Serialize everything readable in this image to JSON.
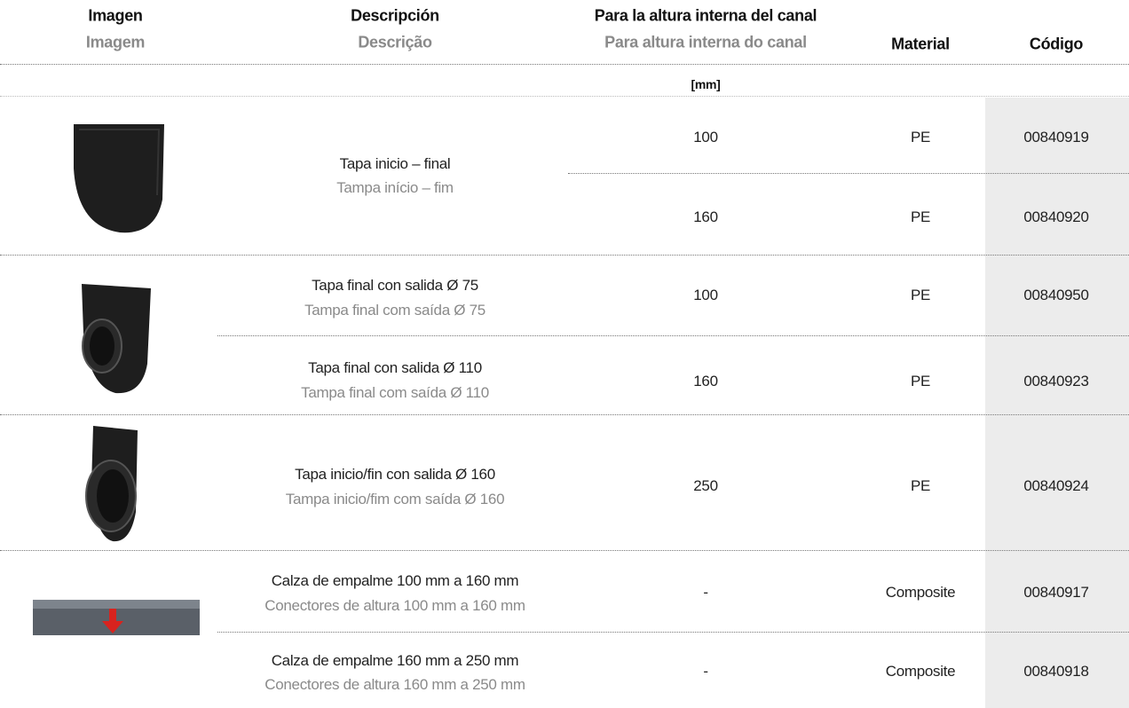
{
  "header": {
    "columns": [
      {
        "es": "Imagen",
        "pt": "Imagem"
      },
      {
        "es": "Descripción",
        "pt": "Descrição"
      },
      {
        "es": "Para la altura interna del canal",
        "pt": "Para altura interna do canal"
      },
      {
        "es": "Material"
      },
      {
        "es": "Código"
      }
    ],
    "unit": "[mm]"
  },
  "groups": [
    {
      "description": {
        "es": "Tapa inicio – final",
        "pt": "Tampa início – fim"
      },
      "rows": [
        {
          "height": 100,
          "material": "PE",
          "code": "00840919"
        },
        {
          "height": 160,
          "material": "PE",
          "code": "00840920"
        }
      ]
    },
    {
      "rows": [
        {
          "description": {
            "es": "Tapa final con salida Ø 75",
            "pt": "Tampa final com saída Ø 75"
          },
          "height": 100,
          "material": "PE",
          "code": "00840950"
        },
        {
          "description": {
            "es": "Tapa final con salida Ø 110",
            "pt": "Tampa final com saída Ø 110"
          },
          "height": 160,
          "material": "PE",
          "code": "00840923"
        }
      ]
    },
    {
      "rows": [
        {
          "description": {
            "es": "Tapa inicio/fin con salida Ø 160",
            "pt": "Tampa inicio/fim com saída Ø 160"
          },
          "height": 250,
          "material": "PE",
          "code": "00840924"
        }
      ]
    },
    {
      "rows": [
        {
          "description": {
            "es": "Calza de empalme 100 mm a 160 mm",
            "pt": "Conectores de altura 100 mm a 160 mm"
          },
          "height": "-",
          "material": "Composite",
          "code": "00840917"
        },
        {
          "description": {
            "es": "Calza de empalme 160 mm a 250 mm",
            "pt": "Conectores de altura 160 mm a 250 mm"
          },
          "height": "-",
          "material": "Composite",
          "code": "00840918"
        }
      ]
    }
  ]
}
